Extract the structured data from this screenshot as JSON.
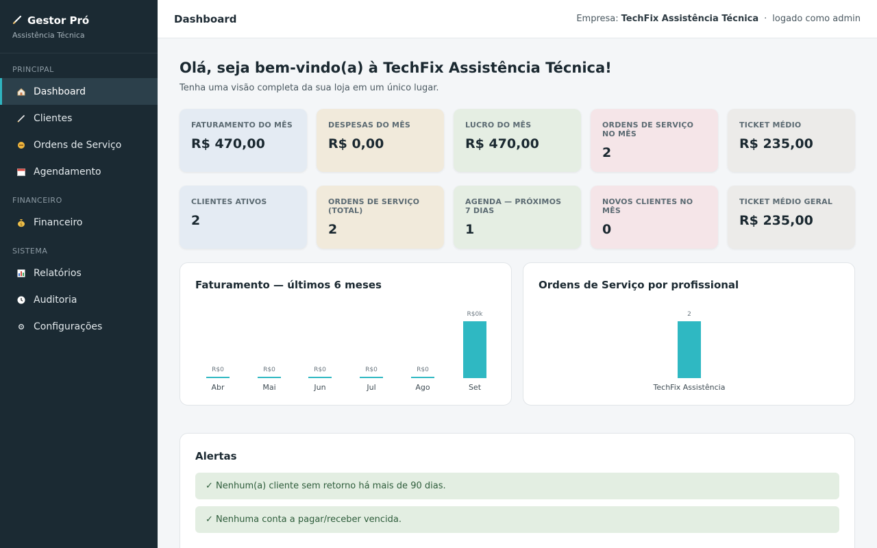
{
  "brand": {
    "title": "Gestor Pró",
    "subtitle": "Assistência Técnica",
    "icon": "pencil-icon"
  },
  "sidebar": {
    "sections": [
      {
        "label": "PRINCIPAL",
        "items": [
          {
            "label": "Dashboard",
            "icon": "home-icon",
            "active": true
          },
          {
            "label": "Clientes",
            "icon": "pencil-icon"
          },
          {
            "label": "Ordens de Serviço",
            "icon": "wrench-icon"
          },
          {
            "label": "Agendamento",
            "icon": "calendar-icon"
          }
        ]
      },
      {
        "label": "FINANCEIRO",
        "items": [
          {
            "label": "Financeiro",
            "icon": "money-bag-icon"
          }
        ]
      },
      {
        "label": "SISTEMA",
        "items": [
          {
            "label": "Relatórios",
            "icon": "bar-chart-icon"
          },
          {
            "label": "Auditoria",
            "icon": "clock-icon"
          },
          {
            "label": "Configurações",
            "icon": "gear-icon"
          }
        ]
      }
    ]
  },
  "topbar": {
    "title": "Dashboard",
    "company_prefix": "Empresa:",
    "company_name": "TechFix Assistência Técnica",
    "separator": "·",
    "logged_as": "logado como admin"
  },
  "welcome": {
    "title": "Olá, seja bem-vindo(a) à TechFix Assistência Técnica!",
    "subtitle": "Tenha uma visão completa da sua loja em um único lugar."
  },
  "cards": [
    {
      "label": "FATURAMENTO DO MÊS",
      "value": "R$ 470,00",
      "color": "#e4ebf3"
    },
    {
      "label": "DESPESAS DO MÊS",
      "value": "R$ 0,00",
      "color": "#f1eadb"
    },
    {
      "label": "LUCRO DO MÊS",
      "value": "R$ 470,00",
      "color": "#e5eee3"
    },
    {
      "label": "ORDENS DE SERVIÇO NO MÊS",
      "value": "2",
      "color": "#f5e5e8"
    },
    {
      "label": "TICKET MÉDIO",
      "value": "R$ 235,00",
      "color": "#ecebe9"
    },
    {
      "label": "CLIENTES ATIVOS",
      "value": "2",
      "color": "#e4ebf3"
    },
    {
      "label": "ORDENS DE SERVIÇO (TOTAL)",
      "value": "2",
      "color": "#f1eadb"
    },
    {
      "label": "AGENDA — PRÓXIMOS 7 DIAS",
      "value": "1",
      "color": "#e5eee3"
    },
    {
      "label": "NOVOS CLIENTES NO MÊS",
      "value": "0",
      "color": "#f5e5e8"
    },
    {
      "label": "TICKET MÉDIO GERAL",
      "value": "R$ 235,00",
      "color": "#ecebe9"
    }
  ],
  "chart_data": [
    {
      "type": "bar",
      "title": "Faturamento — últimos 6 meses",
      "categories": [
        "Abr",
        "Mai",
        "Jun",
        "Jul",
        "Ago",
        "Set"
      ],
      "values": [
        0,
        0,
        0,
        0,
        0,
        470
      ],
      "data_labels": [
        "R$0",
        "R$0",
        "R$0",
        "R$0",
        "R$0",
        "R$0k"
      ],
      "color": "#2fb8c2"
    },
    {
      "type": "bar",
      "title": "Ordens de Serviço por profissional",
      "categories": [
        "TechFix Assistência"
      ],
      "values": [
        2
      ],
      "data_labels": [
        "2"
      ],
      "color": "#2fb8c2"
    }
  ],
  "alerts": {
    "title": "Alertas",
    "items": [
      {
        "icon": "check-icon",
        "text": "✓ Nenhum(a) cliente sem retorno há mais de 90 dias."
      },
      {
        "icon": "check-icon",
        "text": "✓ Nenhuma conta a pagar/receber vencida."
      }
    ]
  }
}
